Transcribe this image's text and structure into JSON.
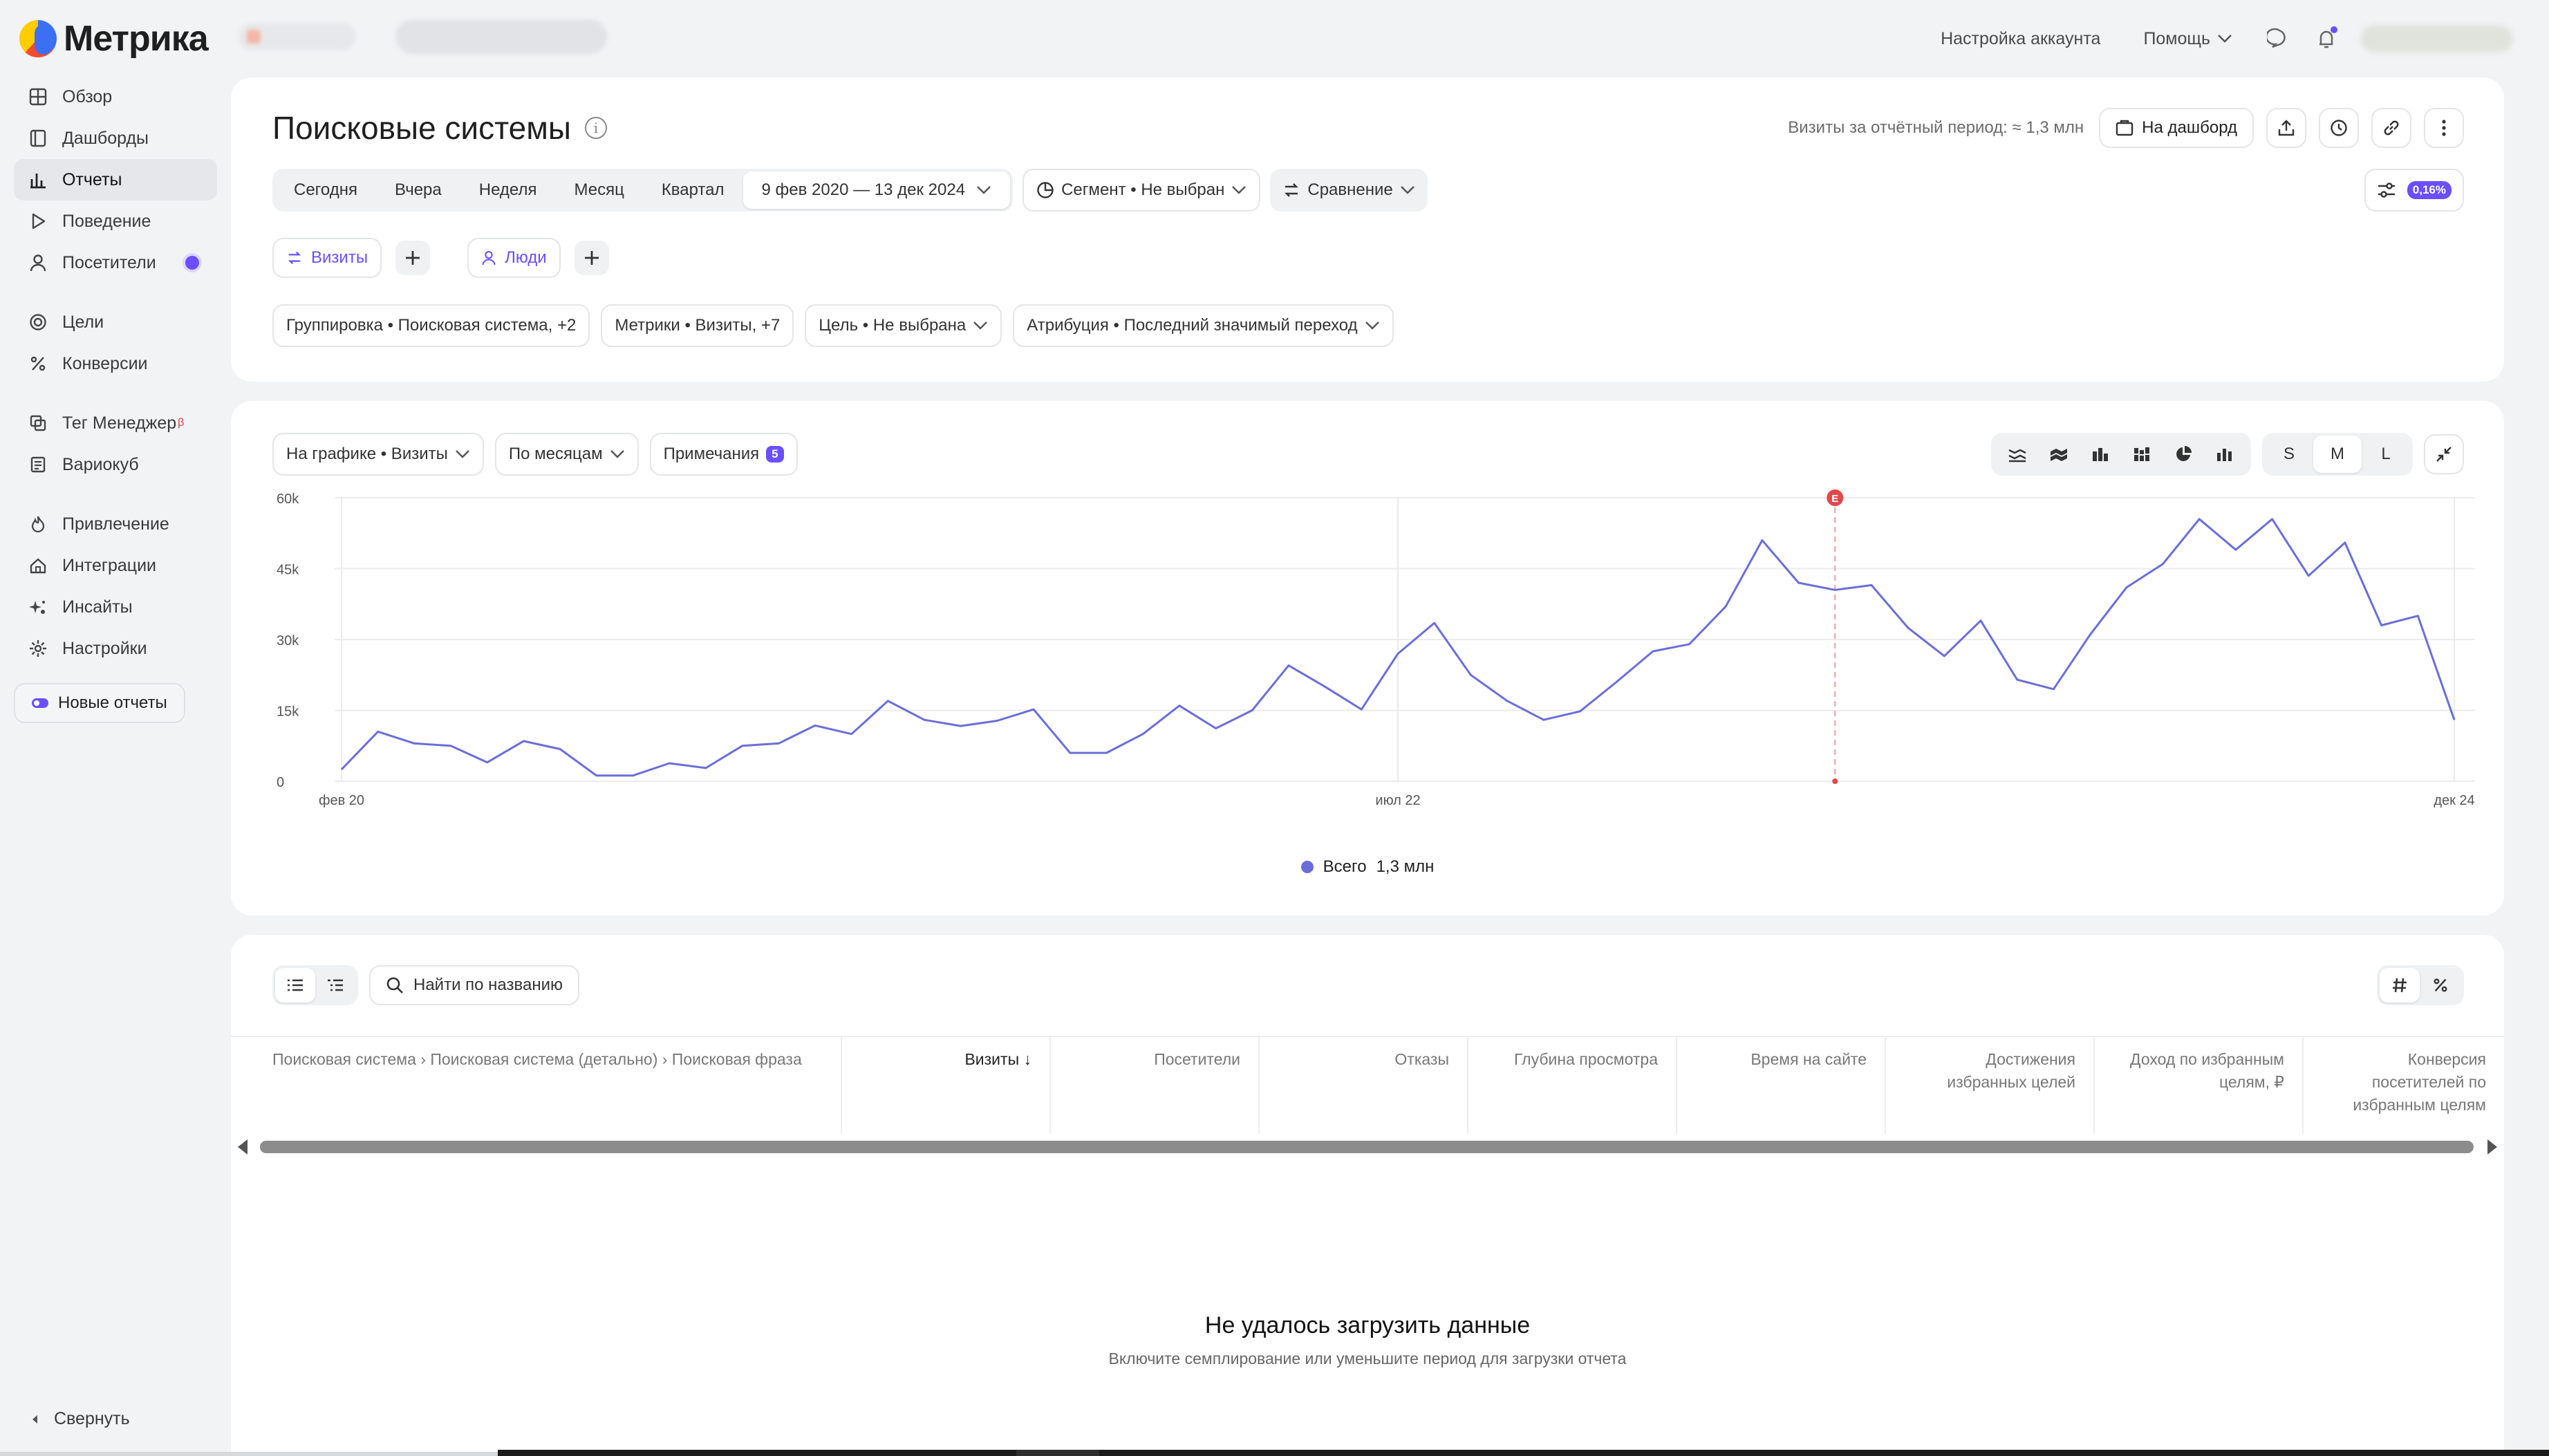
{
  "brand": "Метрика",
  "topbar": {
    "account_settings": "Настройка аккаунта",
    "help": "Помощь"
  },
  "sidebar": {
    "items": [
      {
        "label": "Обзор",
        "icon": "grid-icon"
      },
      {
        "label": "Дашборды",
        "icon": "dashboards-icon"
      },
      {
        "label": "Отчеты",
        "icon": "bar-chart-icon",
        "active": true
      },
      {
        "label": "Поведение",
        "icon": "play-icon"
      },
      {
        "label": "Посетители",
        "icon": "user-icon"
      },
      {
        "label": "Цели",
        "icon": "target-icon"
      },
      {
        "label": "Конверсии",
        "icon": "percent-icon"
      },
      {
        "label": "Тег Менеджер",
        "icon": "tag-manager-icon",
        "badge": "β"
      },
      {
        "label": "Вариокуб",
        "icon": "variocube-icon"
      },
      {
        "label": "Привлечение",
        "icon": "flame-icon"
      },
      {
        "label": "Интеграции",
        "icon": "integrations-icon"
      },
      {
        "label": "Инсайты",
        "icon": "sparkle-icon"
      },
      {
        "label": "Настройки",
        "icon": "gear-icon"
      }
    ],
    "new_reports": "Новые отчеты",
    "collapse": "Свернуть"
  },
  "report": {
    "title": "Поисковые системы",
    "visits_period": "Визиты за отчётный период: ≈ 1,3 млн",
    "to_dashboard": "На дашборд",
    "periods": [
      "Сегодня",
      "Вчера",
      "Неделя",
      "Месяц",
      "Квартал"
    ],
    "date_range": "9 фев 2020 — 13 дек 2024",
    "segment": "Сегмент • Не выбран",
    "compare": "Сравнение",
    "sampling_badge": "0,16%",
    "mode_visits": "Визиты",
    "mode_people": "Люди",
    "grouping": "Группировка • Поисковая система, +2",
    "metrics": "Метрики • Визиты, +7",
    "goal": "Цель • Не выбрана",
    "attribution": "Атрибуция • Последний значимый переход"
  },
  "chart_panel": {
    "on_chart": "На графике • Визиты",
    "by_months": "По месяцам",
    "notes": "Примечания",
    "notes_count": "5",
    "sizes": [
      "S",
      "M",
      "L"
    ],
    "selected_size": "M",
    "legend_label": "Всего",
    "legend_value": "1,3 млн",
    "event_marker": "E"
  },
  "chart_data": {
    "type": "line",
    "title": "",
    "xlabel": "",
    "ylabel": "",
    "ylim": [
      0,
      60000
    ],
    "yticks": [
      0,
      15000,
      30000,
      45000,
      60000
    ],
    "ytick_labels": [
      "0",
      "15k",
      "30k",
      "45k",
      "60k"
    ],
    "x_tick_labels": [
      "фев 20",
      "июл 22",
      "дек 24"
    ],
    "x_tick_positions": [
      0,
      29,
      58
    ],
    "event_index": 41,
    "series": [
      {
        "name": "Всего",
        "color": "#6b6ed8",
        "values": [
          2500,
          10500,
          8000,
          7500,
          4000,
          8500,
          6800,
          1200,
          1200,
          3800,
          2800,
          7500,
          8000,
          11800,
          10000,
          17000,
          13000,
          11700,
          12800,
          15200,
          6000,
          6000,
          10000,
          16000,
          11200,
          15000,
          24500,
          20000,
          15200,
          27000,
          33500,
          22500,
          17000,
          13000,
          14800,
          21000,
          27500,
          29000,
          37000,
          51000,
          42000,
          40500,
          41500,
          32500,
          26500,
          34000,
          21500,
          19500,
          31000,
          41000,
          46000,
          55500,
          49000,
          55500,
          43500,
          50500,
          33000,
          35000,
          13000
        ]
      }
    ]
  },
  "table": {
    "search_placeholder": "Найти по названию",
    "dimension_header": "Поисковая система › Поисковая система (детально) › Поисковая фраза",
    "columns": [
      "Визиты ↓",
      "Посетители",
      "Отказы",
      "Глубина просмотра",
      "Время на сайте",
      "Достижения избранных целей",
      "Доход по избранным целям, ₽",
      "Конверсия посетителей по избранным целям"
    ],
    "error_title": "Не удалось загрузить данные",
    "error_subtitle": "Включите семплирование или уменьшите период для загрузки отчета"
  }
}
